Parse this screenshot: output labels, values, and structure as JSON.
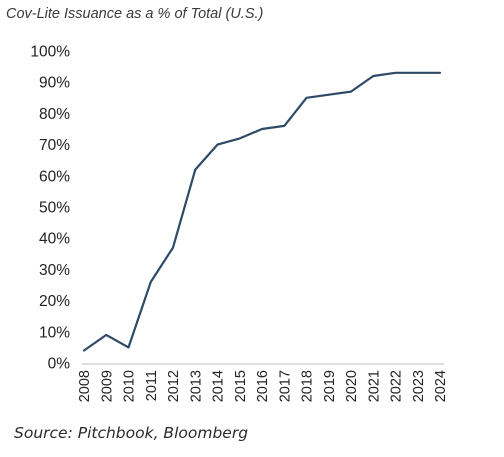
{
  "chart_data": {
    "type": "line",
    "title": "Cov-Lite Issuance as a % of Total (U.S.)",
    "xlabel": "",
    "ylabel": "",
    "x": [
      "2008",
      "2009",
      "2010",
      "2011",
      "2012",
      "2013",
      "2014",
      "2015",
      "2016",
      "2017",
      "2018",
      "2019",
      "2020",
      "2021",
      "2022",
      "2023",
      "2024"
    ],
    "series": [
      {
        "values": [
          4,
          9,
          5,
          26,
          37,
          62,
          70,
          72,
          75,
          76,
          85,
          86,
          87,
          92,
          93,
          93,
          93
        ]
      }
    ],
    "ylim": [
      0,
      100
    ],
    "yticks": [
      "0%",
      "10%",
      "20%",
      "30%",
      "40%",
      "50%",
      "60%",
      "70%",
      "80%",
      "90%",
      "100%"
    ],
    "grid": false,
    "legend": "none",
    "line_color": "#2e4a66",
    "source": "Source: Pitchbook, Bloomberg"
  }
}
